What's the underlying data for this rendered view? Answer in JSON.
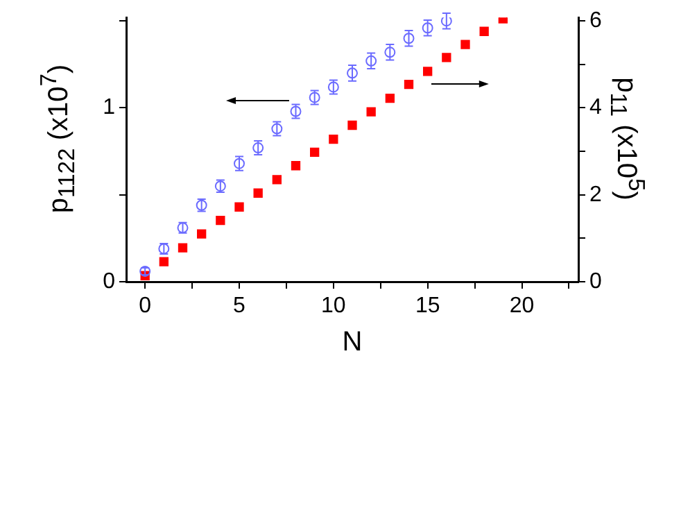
{
  "chart_data": {
    "type": "scatter",
    "xlabel": "N",
    "ylabel": "p$_{1122}$ (x10$^{7}$)",
    "y2label": "p$_{11}$ (x10$^{5}$)",
    "xlim": [
      -1,
      23
    ],
    "xticks": [
      0,
      {
        "value": 2.5,
        "label": null
      },
      5,
      {
        "value": 7.5,
        "label": null
      },
      10,
      {
        "value": 12.5,
        "label": null
      },
      15,
      {
        "value": 17.5,
        "label": null
      },
      20,
      {
        "value": 22.5,
        "label": null
      }
    ],
    "ylim": [
      0,
      1.52
    ],
    "yticks": [
      0,
      {
        "value": 0.5,
        "label": null
      },
      1,
      {
        "value": 1.5,
        "label": null
      }
    ],
    "y2lim": [
      0,
      6.08
    ],
    "y2ticks": [
      0,
      {
        "value": 1,
        "label": null
      },
      2,
      {
        "value": 3,
        "label": null
      },
      4,
      {
        "value": 5,
        "label": null
      },
      6
    ],
    "grid": false,
    "legend": false,
    "series": [
      {
        "color": "#6b6bff",
        "marker": "circle",
        "x": [
          0,
          1,
          2,
          3,
          4,
          5,
          6,
          7,
          8,
          9,
          10,
          11,
          12,
          13,
          14,
          15,
          16
        ],
        "values": [
          0.06,
          0.19,
          0.31,
          0.44,
          0.55,
          0.68,
          0.77,
          0.88,
          0.98,
          1.06,
          1.12,
          1.2,
          1.27,
          1.32,
          1.4,
          1.46,
          1.5
        ],
        "errors": [
          0.02,
          0.03,
          0.03,
          0.035,
          0.035,
          0.04,
          0.04,
          0.04,
          0.04,
          0.04,
          0.04,
          0.045,
          0.045,
          0.045,
          0.045,
          0.045,
          0.045
        ]
      },
      {
        "color": "#ff0000",
        "marker": "square",
        "axis": "y2",
        "x": [
          0,
          1,
          2,
          3,
          4,
          5,
          6,
          7,
          8,
          9,
          10,
          11,
          12,
          13,
          14,
          15,
          16,
          17,
          18,
          19
        ],
        "values": [
          0.14,
          0.46,
          0.78,
          1.1,
          1.41,
          1.72,
          2.04,
          2.35,
          2.67,
          2.98,
          3.28,
          3.6,
          3.91,
          4.22,
          4.54,
          4.84,
          5.16,
          5.46,
          5.76,
          6.05
        ]
      }
    ]
  }
}
